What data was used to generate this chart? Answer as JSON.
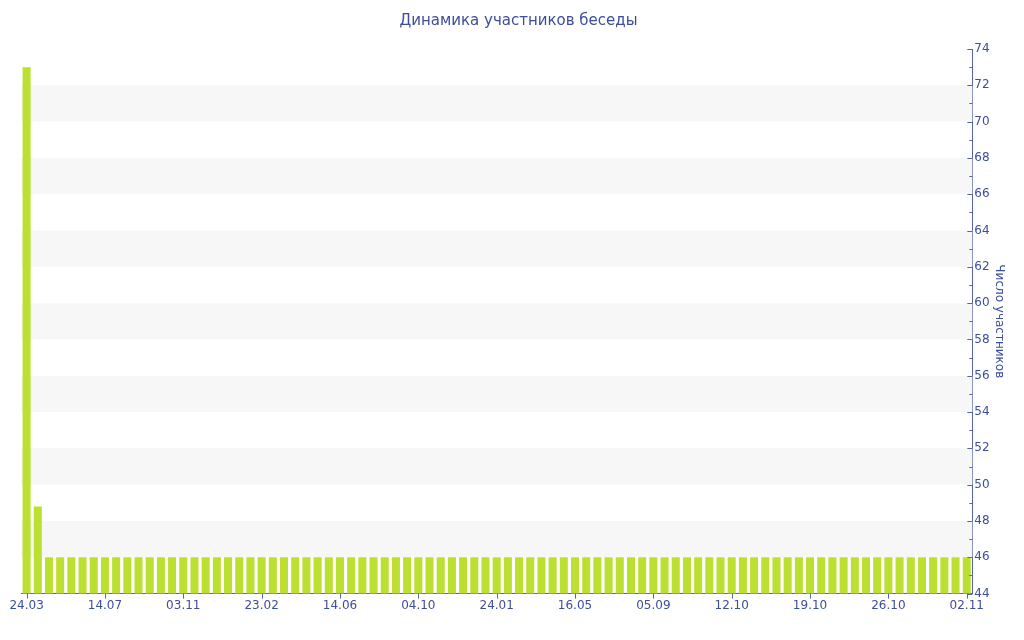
{
  "chart_data": {
    "type": "bar",
    "title": "Динамика участников беседы",
    "ylabel": "Число участников",
    "categories": [
      "24.03",
      null,
      null,
      null,
      null,
      null,
      null,
      "14.07",
      null,
      null,
      null,
      null,
      null,
      null,
      "03.11",
      null,
      null,
      null,
      null,
      null,
      null,
      "23.02",
      null,
      null,
      null,
      null,
      null,
      null,
      "14.06",
      null,
      null,
      null,
      null,
      null,
      null,
      "04.10",
      null,
      null,
      null,
      null,
      null,
      null,
      "24.01",
      null,
      null,
      null,
      null,
      null,
      null,
      "16.05",
      null,
      null,
      null,
      null,
      null,
      null,
      "05.09",
      null,
      null,
      null,
      null,
      null,
      null,
      "12.10",
      null,
      null,
      null,
      null,
      null,
      null,
      "19.10",
      null,
      null,
      null,
      null,
      null,
      null,
      "26.10",
      null,
      null,
      null,
      null,
      null,
      null,
      "02.11"
    ],
    "values": [
      73,
      48.8,
      46,
      46,
      46,
      46,
      46,
      46,
      46,
      46,
      46,
      46,
      46,
      46,
      46,
      46,
      46,
      46,
      46,
      46,
      46,
      46,
      46,
      46,
      46,
      46,
      46,
      46,
      46,
      46,
      46,
      46,
      46,
      46,
      46,
      46,
      46,
      46,
      46,
      46,
      46,
      46,
      46,
      46,
      46,
      46,
      46,
      46,
      46,
      46,
      46,
      46,
      46,
      46,
      46,
      46,
      46,
      46,
      46,
      46,
      46,
      46,
      46,
      46,
      46,
      46,
      46,
      46,
      46,
      46,
      46,
      46,
      46,
      46,
      46,
      46,
      46,
      46,
      46,
      46,
      46,
      46,
      46,
      46,
      46
    ],
    "color": "#bce031",
    "ylim": [
      44,
      74
    ],
    "yticks": [
      44,
      {
        "value": 45,
        "label": null
      },
      46,
      {
        "value": 47,
        "label": null
      },
      48,
      {
        "value": 49,
        "label": null
      },
      50,
      {
        "value": 51,
        "label": null
      },
      52,
      {
        "value": 53,
        "label": null
      },
      54,
      {
        "value": 55,
        "label": null
      },
      56,
      {
        "value": 57,
        "label": null
      },
      58,
      {
        "value": 59,
        "label": null
      },
      60,
      {
        "value": 61,
        "label": null
      },
      62,
      {
        "value": 63,
        "label": null
      },
      64,
      {
        "value": 65,
        "label": null
      },
      66,
      {
        "value": 67,
        "label": null
      },
      68,
      {
        "value": 69,
        "label": null
      },
      70,
      {
        "value": 71,
        "label": null
      },
      72,
      {
        "value": 73,
        "label": null
      },
      74
    ],
    "bands": [
      {
        "axis": "y",
        "from": 46,
        "to": 48,
        "color": "#f7f7f7"
      },
      {
        "axis": "y",
        "from": 50,
        "to": 52,
        "color": "#f7f7f7"
      },
      {
        "axis": "y",
        "from": 54,
        "to": 56,
        "color": "#f7f7f7"
      },
      {
        "axis": "y",
        "from": 58,
        "to": 60,
        "color": "#f7f7f7"
      },
      {
        "axis": "y",
        "from": 62,
        "to": 64,
        "color": "#f7f7f7"
      },
      {
        "axis": "y",
        "from": 66,
        "to": 68,
        "color": "#f7f7f7"
      },
      {
        "axis": "y",
        "from": 70,
        "to": 72,
        "color": "#f7f7f7"
      }
    ]
  }
}
